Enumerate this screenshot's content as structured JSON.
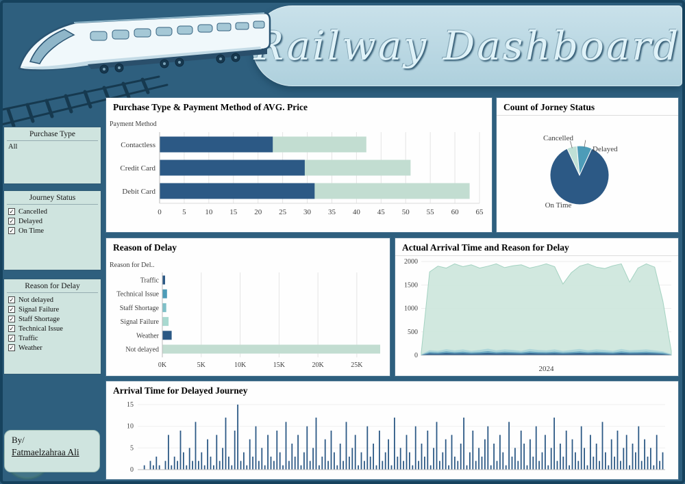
{
  "header": {
    "title": "Railway Dashboard"
  },
  "sidebar": {
    "purchase_type": {
      "title": "Purchase Type",
      "value": "All"
    },
    "journey_status": {
      "title": "Journey Status",
      "items": [
        "Cancelled",
        "Delayed",
        "On Time"
      ]
    },
    "reason_for_delay": {
      "title": "Reason for Delay",
      "items": [
        "Not delayed",
        "Signal Failure",
        "Staff Shortage",
        "Technical Issue",
        "Traffic",
        "Weather"
      ]
    },
    "credit": {
      "line1": "By/",
      "line2": "Fatmaelzahraa Ali"
    }
  },
  "chart_data": [
    {
      "id": "payment-avg-price",
      "type": "bar",
      "orientation": "horizontal",
      "title": "Purchase Type & Payment Method of AVG. Price",
      "axis_label": "Payment Method",
      "categories": [
        "Contactless",
        "Credit Card",
        "Debit Card"
      ],
      "series": [
        {
          "name": "purchase-type-dark",
          "color": "#2c5985",
          "values": [
            23,
            29.5,
            31.5
          ]
        },
        {
          "name": "purchase-type-light",
          "color": "#c2ddd1",
          "values": [
            42,
            51,
            63
          ]
        }
      ],
      "xlim": [
        0,
        65
      ],
      "xticks": [
        0,
        5,
        10,
        15,
        20,
        25,
        30,
        35,
        40,
        45,
        50,
        55,
        60,
        65
      ]
    },
    {
      "id": "journey-status-pie",
      "type": "pie",
      "title": "Count of Jorney Status",
      "start_angle": -25,
      "slices": [
        {
          "label": "Cancelled",
          "value": 5.5,
          "color": "#bfe0d6"
        },
        {
          "label": "Delayed",
          "value": 8.3,
          "color": "#4d9cb8"
        },
        {
          "label": "On Time",
          "value": 86.2,
          "color": "#2c5985"
        }
      ]
    },
    {
      "id": "reason-of-delay",
      "type": "bar",
      "orientation": "horizontal",
      "title": "Reason of Delay",
      "axis_label": "Reason for Del..",
      "categories": [
        "Traffic",
        "Technical Issue",
        "Staff Shortage",
        "Signal Failure",
        "Weather",
        "Not delayed"
      ],
      "values": [
        0.35,
        0.6,
        0.5,
        0.8,
        1.2,
        28
      ],
      "bar_colors": [
        "#2c5985",
        "#4d9cb8",
        "#7fc0c8",
        "#a9d9d0",
        "#2c5985",
        "#c2ddd1"
      ],
      "unit": "K",
      "xlim": [
        0,
        28
      ],
      "xticks": [
        "0K",
        "5K",
        "10K",
        "15K",
        "20K",
        "25K"
      ],
      "xtick_values": [
        0,
        5,
        10,
        15,
        20,
        25
      ]
    },
    {
      "id": "actual-arrival-area",
      "type": "area",
      "title": "Actual Arrival Time and Reason for Delay",
      "ylim": [
        0,
        2000
      ],
      "yticks": [
        0,
        500,
        1000,
        1500,
        2000
      ],
      "xlabel": "2024",
      "series": [
        {
          "name": "total-arrivals",
          "color": "#cfe7dd",
          "stroke": "#a3d2c1",
          "opacity": 0.95,
          "values": [
            60,
            1780,
            1900,
            1860,
            1950,
            1890,
            1930,
            1860,
            1900,
            1950,
            1870,
            1910,
            1930,
            1860,
            1900,
            1950,
            1890,
            1520,
            1760,
            1900,
            1950,
            1880,
            1850,
            1910,
            1950,
            1560,
            1860,
            1950,
            1880,
            1150,
            90
          ]
        },
        {
          "name": "delay-layer-1",
          "color": "#a8d4d8",
          "stroke": "none",
          "opacity": 0.9,
          "values": [
            20,
            110,
            95,
            130,
            105,
            125,
            95,
            115,
            140,
            105,
            125,
            115,
            95,
            135,
            115,
            105,
            125,
            95,
            115,
            135,
            105,
            125,
            115,
            95,
            135,
            105,
            115,
            125,
            105,
            85,
            25
          ]
        },
        {
          "name": "delay-layer-2",
          "color": "#5f9fbb",
          "stroke": "none",
          "opacity": 0.9,
          "values": [
            12,
            70,
            60,
            82,
            66,
            76,
            60,
            70,
            88,
            66,
            76,
            70,
            60,
            82,
            70,
            66,
            76,
            60,
            70,
            82,
            66,
            76,
            70,
            60,
            82,
            66,
            70,
            76,
            66,
            52,
            15
          ]
        },
        {
          "name": "delay-layer-3",
          "color": "#2c5985",
          "stroke": "none",
          "opacity": 0.95,
          "values": [
            6,
            38,
            32,
            45,
            36,
            42,
            32,
            38,
            48,
            36,
            42,
            38,
            32,
            45,
            38,
            36,
            42,
            32,
            38,
            45,
            36,
            42,
            38,
            32,
            45,
            36,
            38,
            42,
            36,
            28,
            8
          ]
        }
      ]
    },
    {
      "id": "delayed-journey-spikes",
      "type": "bar",
      "title": "Arrival Time for Delayed Journey",
      "color": "#2c5985",
      "ylim": [
        0,
        15
      ],
      "yticks": [
        0,
        5,
        10,
        15
      ],
      "values": [
        0,
        0,
        1,
        0,
        2,
        1,
        3,
        1,
        0,
        2,
        8,
        1,
        3,
        2,
        9,
        4,
        1,
        5,
        2,
        11,
        2,
        4,
        1,
        7,
        3,
        1,
        8,
        2,
        5,
        12,
        3,
        1,
        9,
        15,
        2,
        4,
        1,
        7,
        3,
        10,
        2,
        5,
        1,
        8,
        3,
        2,
        9,
        4,
        1,
        11,
        2,
        6,
        3,
        8,
        1,
        4,
        10,
        2,
        5,
        12,
        1,
        3,
        7,
        2,
        9,
        4,
        1,
        6,
        2,
        11,
        3,
        5,
        8,
        1,
        4,
        2,
        10,
        3,
        6,
        1,
        9,
        2,
        4,
        7,
        1,
        12,
        3,
        5,
        2,
        8,
        4,
        1,
        10,
        2,
        6,
        3,
        9,
        1,
        5,
        11,
        2,
        4,
        7,
        1,
        8,
        3,
        2,
        6,
        12,
        1,
        4,
        9,
        2,
        5,
        3,
        7,
        10,
        1,
        6,
        2,
        8,
        4,
        1,
        11,
        3,
        5,
        2,
        9,
        6,
        1,
        7,
        3,
        10,
        2,
        4,
        8,
        1,
        5,
        12,
        2,
        6,
        3,
        9,
        1,
        7,
        4,
        2,
        10,
        5,
        1,
        8,
        3,
        6,
        2,
        11,
        4,
        1,
        7,
        3,
        9,
        2,
        5,
        8,
        1,
        6,
        4,
        10,
        2,
        7,
        3,
        5,
        1,
        8,
        2,
        4
      ]
    }
  ]
}
